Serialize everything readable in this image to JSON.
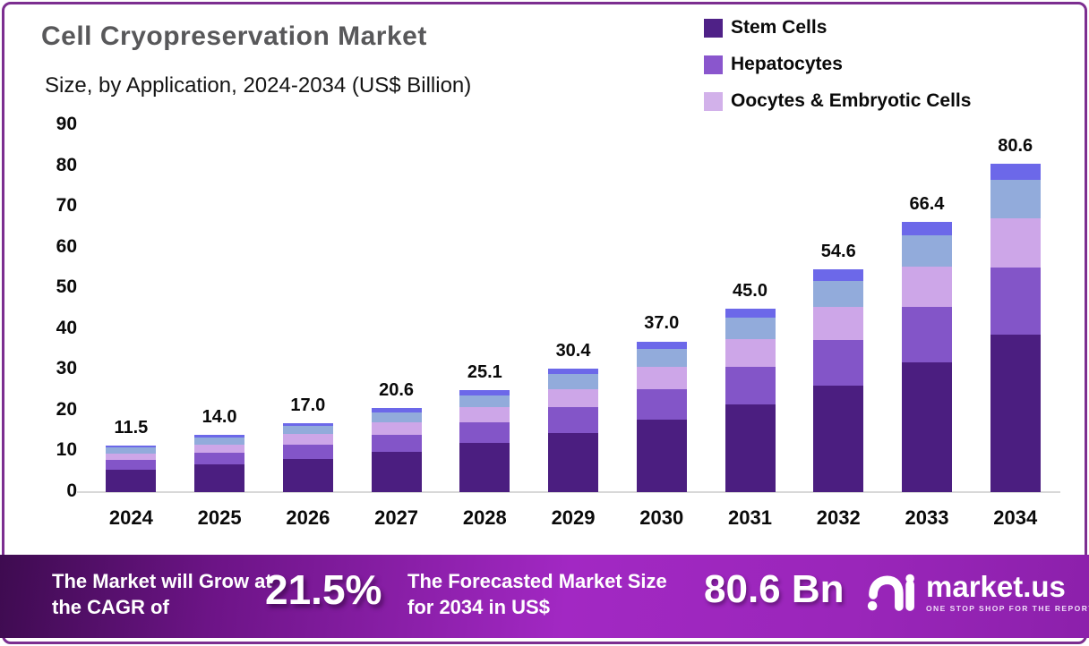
{
  "header": {
    "title": "Cell Cryopreservation Market",
    "subtitle": "Size, by Application, 2024-2034 (US$ Billion)"
  },
  "legend": [
    {
      "label": "Stem Cells",
      "color": "#4f2187"
    },
    {
      "label": "Hepatocytes",
      "color": "#8a56cd"
    },
    {
      "label": "Oocytes & Embryotic Cells",
      "color": "#d2b1ea"
    }
  ],
  "chart_data": {
    "type": "bar",
    "stacked": true,
    "title": "Cell Cryopreservation Market Size, by Application, 2024-2034 (US$ Billion)",
    "categories": [
      "2024",
      "2025",
      "2026",
      "2027",
      "2028",
      "2029",
      "2030",
      "2031",
      "2032",
      "2033",
      "2034"
    ],
    "totals_display": [
      "11.5",
      "14.0",
      "17.0",
      "20.6",
      "25.1",
      "30.4",
      "37.0",
      "45.0",
      "54.6",
      "66.4",
      "80.6"
    ],
    "series": [
      {
        "name": "Stem Cells",
        "color": "#4b1e80",
        "values": [
          5.5,
          6.7,
          8.2,
          9.9,
          12.0,
          14.6,
          17.8,
          21.6,
          26.2,
          31.9,
          38.7
        ]
      },
      {
        "name": "Hepatocytes",
        "color": "#8355c8",
        "values": [
          2.3,
          2.9,
          3.5,
          4.2,
          5.1,
          6.2,
          7.5,
          9.2,
          11.2,
          13.6,
          16.5
        ]
      },
      {
        "name": "Oocytes & Embryotic Cells",
        "color": "#cda6e8",
        "values": [
          1.7,
          2.1,
          2.5,
          3.1,
          3.7,
          4.5,
          5.5,
          6.7,
          8.1,
          9.8,
          11.9
        ]
      },
      {
        "name": "Unlabeled segment (steel blue)",
        "color": "#92abdb",
        "values": [
          1.4,
          1.6,
          2.0,
          2.4,
          3.0,
          3.6,
          4.4,
          5.3,
          6.4,
          7.8,
          9.5
        ]
      },
      {
        "name": "Unlabeled segment (blue violet)",
        "color": "#6c68e9",
        "values": [
          0.6,
          0.7,
          0.8,
          1.0,
          1.3,
          1.5,
          1.8,
          2.2,
          2.7,
          3.3,
          4.0
        ]
      }
    ],
    "xlabel": "",
    "ylabel": "",
    "ylim": [
      0,
      90
    ],
    "yticks": [
      0,
      10,
      20,
      30,
      40,
      50,
      60,
      70,
      80,
      90
    ],
    "grid": false,
    "legend_position": "top-right"
  },
  "footer": {
    "cagr_label": "The Market will Grow at the CAGR of",
    "cagr_value": "21.5%",
    "forecast_label": "The Forecasted Market Size for 2034 in US$",
    "forecast_value": "80.6 Bn",
    "brand": {
      "name": "market.us",
      "tagline": "ONE STOP SHOP FOR THE REPORTS"
    }
  }
}
